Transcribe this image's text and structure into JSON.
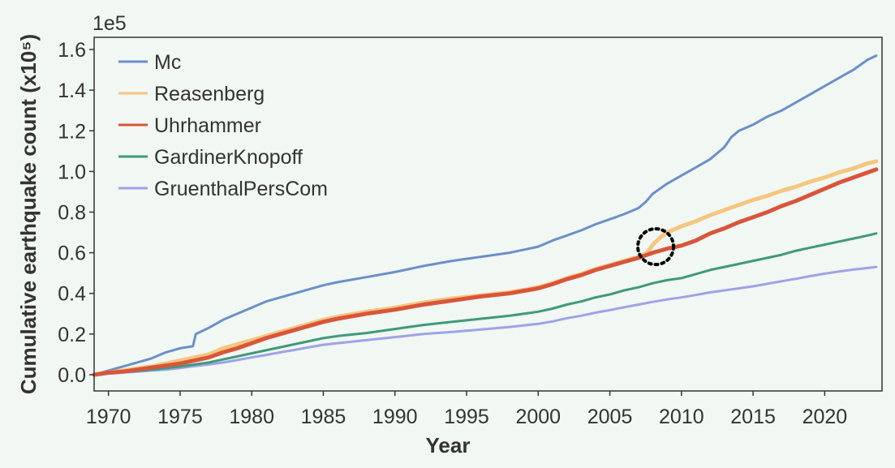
{
  "chart_data": {
    "type": "line",
    "xlabel": "Year",
    "ylabel": "Cumulative earthquake count (x10⁵)",
    "y_offset_label": "1e5",
    "y_multiplier": 100000,
    "xlim": [
      1969,
      2024
    ],
    "ylim": [
      -0.08,
      1.66
    ],
    "x_ticks": [
      1970,
      1975,
      1980,
      1985,
      1990,
      1995,
      2000,
      2005,
      2010,
      2015,
      2020
    ],
    "y_ticks": [
      0.0,
      0.2,
      0.4,
      0.6,
      0.8,
      1.0,
      1.2,
      1.4,
      1.6
    ],
    "y_tick_labels": [
      "0.0",
      "0.2",
      "0.4",
      "0.6",
      "0.8",
      "1.0",
      "1.2",
      "1.4",
      "1.6"
    ],
    "grid": false,
    "legend_position": "top-left",
    "annotation": {
      "type": "dotted-circle",
      "x": 2008.2,
      "y": 0.63
    },
    "series": [
      {
        "name": "Mc",
        "color": "#6b8fc9",
        "points": [
          [
            1969,
            0.0
          ],
          [
            1970,
            0.02
          ],
          [
            1971,
            0.04
          ],
          [
            1972,
            0.06
          ],
          [
            1973,
            0.08
          ],
          [
            1974,
            0.11
          ],
          [
            1975,
            0.13
          ],
          [
            1975.9,
            0.14
          ],
          [
            1976.1,
            0.2
          ],
          [
            1977,
            0.23
          ],
          [
            1978,
            0.27
          ],
          [
            1979,
            0.3
          ],
          [
            1980,
            0.33
          ],
          [
            1981,
            0.36
          ],
          [
            1982,
            0.38
          ],
          [
            1983,
            0.4
          ],
          [
            1984,
            0.42
          ],
          [
            1985,
            0.44
          ],
          [
            1986,
            0.455
          ],
          [
            1988,
            0.48
          ],
          [
            1990,
            0.505
          ],
          [
            1992,
            0.535
          ],
          [
            1994,
            0.56
          ],
          [
            1996,
            0.58
          ],
          [
            1998,
            0.6
          ],
          [
            2000,
            0.63
          ],
          [
            2001,
            0.66
          ],
          [
            2002,
            0.685
          ],
          [
            2003,
            0.71
          ],
          [
            2004,
            0.74
          ],
          [
            2005,
            0.765
          ],
          [
            2006,
            0.79
          ],
          [
            2007,
            0.82
          ],
          [
            2007.5,
            0.85
          ],
          [
            2008,
            0.89
          ],
          [
            2009,
            0.94
          ],
          [
            2010,
            0.98
          ],
          [
            2011,
            1.02
          ],
          [
            2012,
            1.06
          ],
          [
            2013,
            1.12
          ],
          [
            2013.5,
            1.17
          ],
          [
            2014,
            1.2
          ],
          [
            2015,
            1.23
          ],
          [
            2016,
            1.27
          ],
          [
            2017,
            1.3
          ],
          [
            2018,
            1.34
          ],
          [
            2019,
            1.38
          ],
          [
            2020,
            1.42
          ],
          [
            2021,
            1.46
          ],
          [
            2022,
            1.5
          ],
          [
            2023,
            1.55
          ],
          [
            2023.6,
            1.57
          ]
        ]
      },
      {
        "name": "Reasenberg",
        "color": "#f5c67f",
        "points": [
          [
            1969,
            0.0
          ],
          [
            1970,
            0.01
          ],
          [
            1971,
            0.02
          ],
          [
            1972,
            0.03
          ],
          [
            1973,
            0.04
          ],
          [
            1974,
            0.055
          ],
          [
            1975,
            0.07
          ],
          [
            1976,
            0.085
          ],
          [
            1977,
            0.1
          ],
          [
            1978,
            0.13
          ],
          [
            1979,
            0.15
          ],
          [
            1980,
            0.17
          ],
          [
            1981,
            0.19
          ],
          [
            1982,
            0.21
          ],
          [
            1983,
            0.23
          ],
          [
            1984,
            0.25
          ],
          [
            1985,
            0.27
          ],
          [
            1986,
            0.285
          ],
          [
            1988,
            0.31
          ],
          [
            1990,
            0.33
          ],
          [
            1992,
            0.355
          ],
          [
            1994,
            0.375
          ],
          [
            1996,
            0.39
          ],
          [
            1998,
            0.405
          ],
          [
            2000,
            0.43
          ],
          [
            2001,
            0.45
          ],
          [
            2002,
            0.475
          ],
          [
            2003,
            0.495
          ],
          [
            2004,
            0.52
          ],
          [
            2005,
            0.54
          ],
          [
            2006,
            0.56
          ],
          [
            2007,
            0.58
          ],
          [
            2007.6,
            0.6
          ],
          [
            2008,
            0.64
          ],
          [
            2008.6,
            0.68
          ],
          [
            2009,
            0.7
          ],
          [
            2010,
            0.73
          ],
          [
            2011,
            0.755
          ],
          [
            2012,
            0.785
          ],
          [
            2013,
            0.81
          ],
          [
            2014,
            0.835
          ],
          [
            2015,
            0.86
          ],
          [
            2016,
            0.88
          ],
          [
            2017,
            0.905
          ],
          [
            2018,
            0.925
          ],
          [
            2019,
            0.95
          ],
          [
            2020,
            0.97
          ],
          [
            2021,
            0.995
          ],
          [
            2022,
            1.015
          ],
          [
            2023,
            1.04
          ],
          [
            2023.6,
            1.05
          ]
        ]
      },
      {
        "name": "Uhrhammer",
        "color": "#d9553a",
        "points": [
          [
            1969,
            0.0
          ],
          [
            1970,
            0.01
          ],
          [
            1971,
            0.015
          ],
          [
            1972,
            0.025
          ],
          [
            1973,
            0.035
          ],
          [
            1974,
            0.045
          ],
          [
            1975,
            0.055
          ],
          [
            1976,
            0.07
          ],
          [
            1977,
            0.085
          ],
          [
            1978,
            0.11
          ],
          [
            1979,
            0.13
          ],
          [
            1980,
            0.155
          ],
          [
            1981,
            0.18
          ],
          [
            1982,
            0.2
          ],
          [
            1983,
            0.22
          ],
          [
            1984,
            0.24
          ],
          [
            1985,
            0.26
          ],
          [
            1986,
            0.275
          ],
          [
            1988,
            0.3
          ],
          [
            1990,
            0.32
          ],
          [
            1992,
            0.345
          ],
          [
            1994,
            0.365
          ],
          [
            1996,
            0.385
          ],
          [
            1998,
            0.4
          ],
          [
            2000,
            0.425
          ],
          [
            2001,
            0.445
          ],
          [
            2002,
            0.47
          ],
          [
            2003,
            0.49
          ],
          [
            2004,
            0.515
          ],
          [
            2005,
            0.535
          ],
          [
            2006,
            0.555
          ],
          [
            2007,
            0.575
          ],
          [
            2008,
            0.6
          ],
          [
            2009,
            0.62
          ],
          [
            2010,
            0.635
          ],
          [
            2011,
            0.66
          ],
          [
            2012,
            0.695
          ],
          [
            2013,
            0.72
          ],
          [
            2014,
            0.75
          ],
          [
            2015,
            0.775
          ],
          [
            2016,
            0.8
          ],
          [
            2017,
            0.83
          ],
          [
            2018,
            0.855
          ],
          [
            2019,
            0.885
          ],
          [
            2020,
            0.915
          ],
          [
            2021,
            0.945
          ],
          [
            2022,
            0.97
          ],
          [
            2023,
            0.995
          ],
          [
            2023.6,
            1.01
          ]
        ]
      },
      {
        "name": "GardinerKnopoff",
        "color": "#3e9a78",
        "points": [
          [
            1969,
            0.0
          ],
          [
            1970,
            0.008
          ],
          [
            1971,
            0.012
          ],
          [
            1972,
            0.018
          ],
          [
            1973,
            0.025
          ],
          [
            1974,
            0.032
          ],
          [
            1975,
            0.04
          ],
          [
            1976,
            0.05
          ],
          [
            1977,
            0.06
          ],
          [
            1978,
            0.075
          ],
          [
            1979,
            0.09
          ],
          [
            1980,
            0.105
          ],
          [
            1981,
            0.12
          ],
          [
            1982,
            0.135
          ],
          [
            1983,
            0.15
          ],
          [
            1984,
            0.165
          ],
          [
            1985,
            0.18
          ],
          [
            1986,
            0.19
          ],
          [
            1988,
            0.205
          ],
          [
            1990,
            0.225
          ],
          [
            1992,
            0.245
          ],
          [
            1994,
            0.26
          ],
          [
            1996,
            0.275
          ],
          [
            1998,
            0.29
          ],
          [
            2000,
            0.31
          ],
          [
            2001,
            0.325
          ],
          [
            2002,
            0.345
          ],
          [
            2003,
            0.36
          ],
          [
            2004,
            0.38
          ],
          [
            2005,
            0.395
          ],
          [
            2006,
            0.415
          ],
          [
            2007,
            0.43
          ],
          [
            2008,
            0.45
          ],
          [
            2009,
            0.465
          ],
          [
            2010,
            0.475
          ],
          [
            2011,
            0.495
          ],
          [
            2012,
            0.515
          ],
          [
            2013,
            0.53
          ],
          [
            2014,
            0.545
          ],
          [
            2015,
            0.56
          ],
          [
            2016,
            0.575
          ],
          [
            2017,
            0.59
          ],
          [
            2018,
            0.61
          ],
          [
            2019,
            0.625
          ],
          [
            2020,
            0.64
          ],
          [
            2021,
            0.655
          ],
          [
            2022,
            0.67
          ],
          [
            2023,
            0.685
          ],
          [
            2023.6,
            0.695
          ]
        ]
      },
      {
        "name": "GruenthalPersCom",
        "color": "#9fa2e6",
        "points": [
          [
            1969,
            -0.005
          ],
          [
            1970,
            0.005
          ],
          [
            1971,
            0.01
          ],
          [
            1972,
            0.015
          ],
          [
            1973,
            0.02
          ],
          [
            1974,
            0.025
          ],
          [
            1975,
            0.033
          ],
          [
            1976,
            0.042
          ],
          [
            1977,
            0.05
          ],
          [
            1978,
            0.06
          ],
          [
            1979,
            0.072
          ],
          [
            1980,
            0.085
          ],
          [
            1981,
            0.097
          ],
          [
            1982,
            0.11
          ],
          [
            1983,
            0.122
          ],
          [
            1984,
            0.135
          ],
          [
            1985,
            0.147
          ],
          [
            1986,
            0.155
          ],
          [
            1988,
            0.17
          ],
          [
            1990,
            0.185
          ],
          [
            1992,
            0.2
          ],
          [
            1994,
            0.21
          ],
          [
            1996,
            0.222
          ],
          [
            1998,
            0.235
          ],
          [
            2000,
            0.25
          ],
          [
            2001,
            0.262
          ],
          [
            2002,
            0.278
          ],
          [
            2003,
            0.29
          ],
          [
            2004,
            0.305
          ],
          [
            2005,
            0.318
          ],
          [
            2006,
            0.332
          ],
          [
            2007,
            0.345
          ],
          [
            2008,
            0.358
          ],
          [
            2009,
            0.37
          ],
          [
            2010,
            0.38
          ],
          [
            2011,
            0.392
          ],
          [
            2012,
            0.405
          ],
          [
            2013,
            0.415
          ],
          [
            2014,
            0.425
          ],
          [
            2015,
            0.435
          ],
          [
            2016,
            0.447
          ],
          [
            2017,
            0.46
          ],
          [
            2018,
            0.472
          ],
          [
            2019,
            0.485
          ],
          [
            2020,
            0.497
          ],
          [
            2021,
            0.508
          ],
          [
            2022,
            0.517
          ],
          [
            2023,
            0.525
          ],
          [
            2023.6,
            0.53
          ]
        ]
      }
    ]
  }
}
